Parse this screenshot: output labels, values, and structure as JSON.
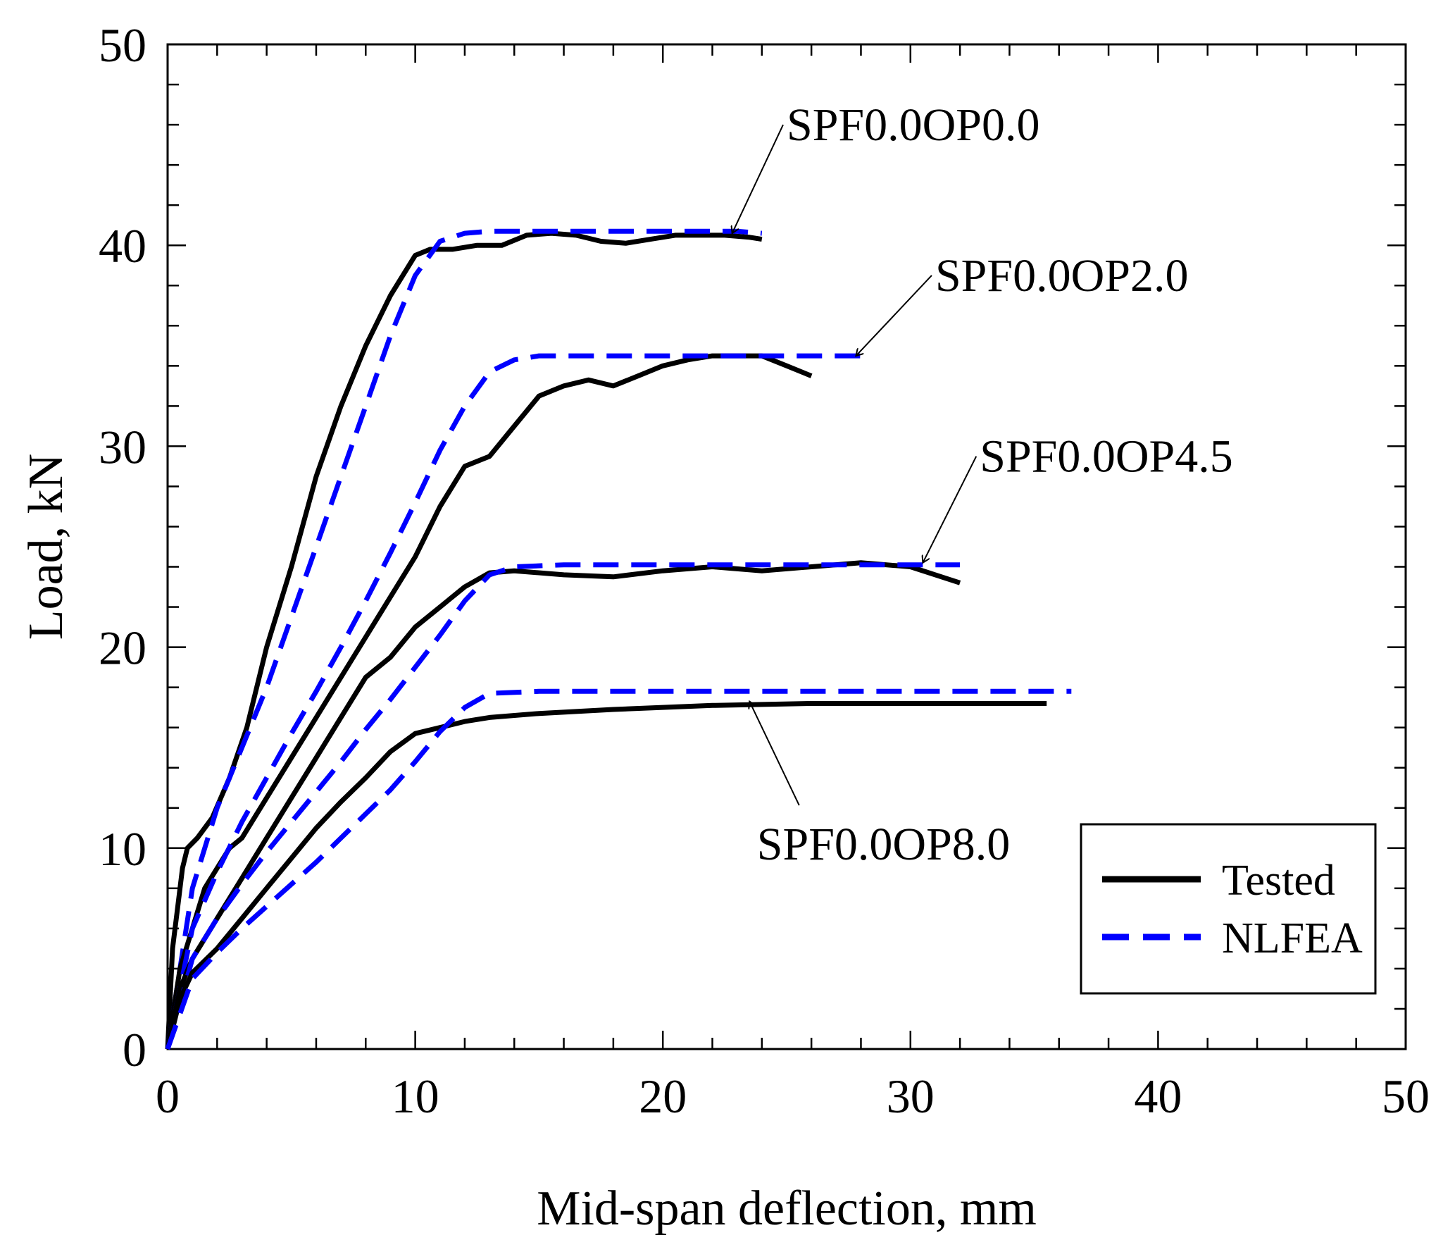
{
  "chart_data": {
    "type": "line",
    "title": "",
    "xlabel": "Mid-span deflection, mm",
    "ylabel": "Load, kN",
    "xlim": [
      0,
      50
    ],
    "ylim": [
      0,
      50
    ],
    "xticks": [
      "0",
      "10",
      "20",
      "30",
      "40",
      "50"
    ],
    "yticks": [
      "0",
      "10",
      "20",
      "30",
      "40",
      "50"
    ],
    "grid": false,
    "legend": {
      "position": "bottom-right",
      "entries": [
        {
          "label": "Tested",
          "color": "#000000",
          "style": "solid"
        },
        {
          "label": "NLFEA",
          "color": "#0000ff",
          "style": "dashed"
        }
      ]
    },
    "annotations": [
      {
        "text": "SPF0.0OP0.0",
        "target": [
          22.8,
          40.6
        ],
        "text_at": [
          25,
          46
        ]
      },
      {
        "text": "SPF0.0OP2.0",
        "target": [
          27.8,
          34.5
        ],
        "text_at": [
          31,
          38.5
        ]
      },
      {
        "text": "SPF0.0OP4.5",
        "target": [
          30.5,
          24.2
        ],
        "text_at": [
          32.8,
          29.5
        ]
      },
      {
        "text": "SPF0.0OP8.0",
        "target": [
          23.5,
          17.3
        ],
        "text_at": [
          23.8,
          10.2
        ]
      }
    ],
    "series": [
      {
        "name": "SPF0.0OP0.0 Tested",
        "kind": "Tested",
        "color": "#000000",
        "style": "solid",
        "x": [
          0,
          0.2,
          0.4,
          0.6,
          0.8,
          1.2,
          1.8,
          2.5,
          3.2,
          4.0,
          5.0,
          6.0,
          7.0,
          8.0,
          9.0,
          10.0,
          10.6,
          11.5,
          12.5,
          13.5,
          14.5,
          15.5,
          16.5,
          17.5,
          18.5,
          19.5,
          20.5,
          21.5,
          22.5,
          23.5,
          24.0
        ],
        "y": [
          0,
          5,
          7,
          9,
          10,
          10.5,
          11.5,
          13.5,
          16,
          20,
          24,
          28.5,
          32,
          35,
          37.5,
          39.5,
          39.8,
          39.8,
          40,
          40,
          40.5,
          40.6,
          40.5,
          40.2,
          40.1,
          40.3,
          40.5,
          40.5,
          40.5,
          40.4,
          40.3
        ]
      },
      {
        "name": "SPF0.0OP0.0 NLFEA",
        "kind": "NLFEA",
        "color": "#0000ff",
        "style": "dashed",
        "x": [
          0,
          1,
          2,
          3,
          4,
          5,
          6,
          7,
          8,
          9,
          10,
          11,
          12,
          13,
          15,
          17,
          19,
          21,
          23,
          24
        ],
        "y": [
          0,
          8,
          12,
          15,
          18,
          21.5,
          25,
          28.5,
          32,
          35.5,
          38.5,
          40.2,
          40.6,
          40.7,
          40.7,
          40.7,
          40.7,
          40.7,
          40.7,
          40.6
        ]
      },
      {
        "name": "SPF0.0OP2.0 Tested",
        "kind": "Tested",
        "color": "#000000",
        "style": "solid",
        "x": [
          0,
          0.5,
          1.0,
          1.5,
          2.0,
          2.5,
          3.0,
          4.0,
          5.0,
          6.0,
          7.0,
          8.0,
          9.0,
          10.0,
          11.0,
          12.0,
          13.0,
          14.0,
          15.0,
          16.0,
          17.0,
          18.0,
          19.0,
          20.0,
          21.0,
          22.0,
          23.0,
          24.0,
          25.0,
          26.0
        ],
        "y": [
          0,
          4,
          6,
          8,
          9,
          10,
          10.5,
          12.5,
          14.5,
          16.5,
          18.5,
          20.5,
          22.5,
          24.5,
          27,
          29,
          29.5,
          31,
          32.5,
          33,
          33.3,
          33,
          33.5,
          34,
          34.3,
          34.5,
          34.5,
          34.5,
          34,
          33.5
        ]
      },
      {
        "name": "SPF0.0OP2.0 NLFEA",
        "kind": "NLFEA",
        "color": "#0000ff",
        "style": "dashed",
        "x": [
          0,
          1,
          2,
          3,
          4,
          5,
          6,
          7,
          8,
          9,
          10,
          11,
          12,
          13,
          14,
          15,
          17,
          20,
          24,
          28
        ],
        "y": [
          0,
          6,
          8.8,
          11.3,
          13.5,
          15.7,
          17.8,
          20,
          22.3,
          24.7,
          27.2,
          29.8,
          32,
          33.7,
          34.3,
          34.5,
          34.5,
          34.5,
          34.5,
          34.5
        ]
      },
      {
        "name": "SPF0.0OP4.5 Tested",
        "kind": "Tested",
        "color": "#000000",
        "style": "solid",
        "x": [
          0,
          0.5,
          1.0,
          2.0,
          3.0,
          4.0,
          5.0,
          6.0,
          7.0,
          8.0,
          9.0,
          10.0,
          11.0,
          12.0,
          13.0,
          14.0,
          16.0,
          18.0,
          20.0,
          22.0,
          24.0,
          26.0,
          28.0,
          30.0,
          31.0,
          32.0
        ],
        "y": [
          0,
          3,
          4.5,
          6.5,
          8.5,
          10.5,
          12.5,
          14.5,
          16.5,
          18.5,
          19.5,
          21,
          22,
          23,
          23.7,
          23.8,
          23.6,
          23.5,
          23.8,
          24,
          23.8,
          24,
          24.2,
          24,
          23.6,
          23.2
        ]
      },
      {
        "name": "SPF0.0OP4.5 NLFEA",
        "kind": "NLFEA",
        "color": "#0000ff",
        "style": "dashed",
        "x": [
          0,
          1,
          2,
          3,
          4,
          5,
          6,
          7,
          8,
          9,
          10,
          11,
          12,
          13,
          14,
          16,
          20,
          24,
          28,
          32
        ],
        "y": [
          0,
          4.5,
          6.5,
          8.2,
          9.8,
          11.3,
          12.8,
          14.3,
          15.9,
          17.4,
          19,
          20.6,
          22.3,
          23.6,
          24,
          24.1,
          24.1,
          24.1,
          24.1,
          24.1
        ]
      },
      {
        "name": "SPF0.0OP8.0 Tested",
        "kind": "Tested",
        "color": "#000000",
        "style": "solid",
        "x": [
          0,
          0.5,
          1.0,
          2.0,
          3.0,
          4.0,
          5.0,
          6.0,
          7.0,
          8.0,
          9.0,
          10.0,
          11.0,
          12.0,
          13.0,
          15.0,
          18.0,
          22.0,
          26.0,
          30.0,
          33.0,
          35.5
        ],
        "y": [
          0,
          2.5,
          3.8,
          5,
          6.5,
          8,
          9.5,
          11,
          12.3,
          13.5,
          14.8,
          15.7,
          16,
          16.3,
          16.5,
          16.7,
          16.9,
          17.1,
          17.2,
          17.2,
          17.2,
          17.2
        ]
      },
      {
        "name": "SPF0.0OP8.0 NLFEA",
        "kind": "NLFEA",
        "color": "#0000ff",
        "style": "dashed",
        "x": [
          0,
          1,
          2,
          3,
          4,
          5,
          6,
          7,
          8,
          9,
          10,
          11,
          12,
          13,
          15,
          20,
          25,
          30,
          36.5
        ],
        "y": [
          0,
          3.5,
          4.8,
          6,
          7.1,
          8.2,
          9.3,
          10.5,
          11.7,
          12.9,
          14.3,
          15.8,
          17,
          17.7,
          17.8,
          17.8,
          17.8,
          17.8,
          17.8
        ]
      }
    ]
  }
}
